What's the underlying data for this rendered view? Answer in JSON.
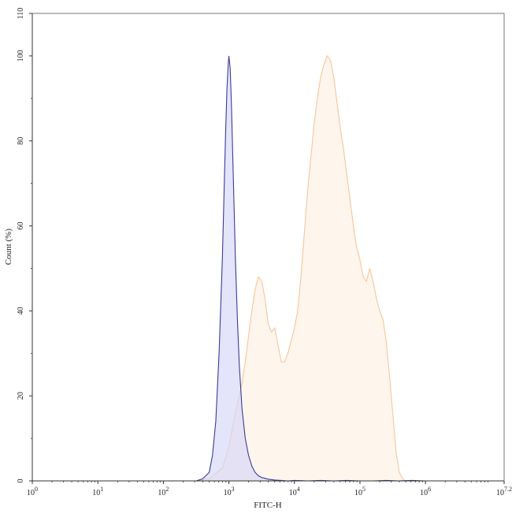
{
  "chart_data": {
    "type": "area",
    "title": "",
    "xlabel": "FITC-H",
    "ylabel": "Count (%)",
    "x_scale": "log10",
    "xlim": [
      1,
      15848932
    ],
    "ylim": [
      0,
      110
    ],
    "grid": false,
    "legend": "none",
    "x_ticks": [
      {
        "value": 1,
        "base": "10",
        "exp": "0"
      },
      {
        "value": 10,
        "base": "10",
        "exp": "1"
      },
      {
        "value": 100,
        "base": "10",
        "exp": "2"
      },
      {
        "value": 1000,
        "base": "10",
        "exp": "3"
      },
      {
        "value": 10000,
        "base": "10",
        "exp": "4"
      },
      {
        "value": 100000,
        "base": "10",
        "exp": "5"
      },
      {
        "value": 1000000,
        "base": "10",
        "exp": "6"
      },
      {
        "value": 15848932,
        "base": "10",
        "exp": "7.2"
      }
    ],
    "y_ticks": [
      {
        "value": 0,
        "label": "0"
      },
      {
        "value": 20,
        "label": "20"
      },
      {
        "value": 40,
        "label": "40"
      },
      {
        "value": 60,
        "label": "60"
      },
      {
        "value": 80,
        "label": "80"
      },
      {
        "value": 100,
        "label": "100"
      },
      {
        "value": 110,
        "label": "110"
      }
    ],
    "series": [
      {
        "color": "#f5c79a",
        "fill": "#fdf0e3",
        "x": [
          316,
          501,
          794,
          1000,
          1259,
          1585,
          1778,
          1995,
          2239,
          2512,
          2818,
          3162,
          3548,
          3981,
          4467,
          5012,
          5623,
          6310,
          7079,
          7943,
          8913,
          10000,
          11220,
          12589,
          14125,
          15849,
          17783,
          19953,
          22387,
          25119,
          28184,
          31623,
          35481,
          39811,
          44668,
          50119,
          56234,
          63096,
          70795,
          79433,
          89125,
          100000,
          112202,
          125893,
          141254,
          158489,
          177828,
          199526,
          223872,
          251189,
          281838,
          316228,
          354813,
          398107,
          446684,
          501187,
          562341,
          630957,
          707946,
          794328,
          891251,
          1000000,
          1258925,
          1584893,
          1995262
        ],
        "values": [
          0,
          0.5,
          3,
          8,
          16,
          23,
          28,
          34,
          40,
          45,
          48,
          47,
          43,
          37,
          35,
          36,
          32,
          28,
          28,
          30,
          33,
          36,
          40,
          48,
          58,
          68,
          76,
          84,
          90,
          95,
          98,
          100,
          99,
          95,
          89,
          83,
          78,
          72,
          66,
          60,
          55,
          52,
          48,
          47,
          50,
          47,
          43,
          40,
          38,
          33,
          25,
          16,
          7,
          2,
          0.5,
          0,
          0,
          0,
          0,
          0,
          0,
          0,
          0,
          0,
          0
        ]
      },
      {
        "color": "#3d3a99",
        "fill": "#d5d5f7",
        "x": [
          316,
          398,
          501,
          562,
          631,
          708,
          794,
          851,
          891,
          933,
          977,
          1000,
          1047,
          1096,
          1148,
          1202,
          1259,
          1349,
          1445,
          1585,
          1778,
          1995,
          2239,
          2512,
          2818,
          3162,
          3981,
          5012,
          6310,
          7943,
          10000,
          15849,
          25119,
          39811,
          63096,
          100000,
          158489,
          251189,
          398107,
          630957,
          1000000,
          1584893
        ],
        "values": [
          0,
          0.5,
          2,
          6,
          14,
          30,
          52,
          70,
          82,
          92,
          98,
          100,
          97,
          88,
          76,
          64,
          52,
          38,
          27,
          17,
          10,
          6,
          3.5,
          2,
          1.2,
          0.8,
          0.4,
          0.2,
          0.1,
          0,
          0.1,
          0,
          0.1,
          0,
          0.1,
          0,
          0,
          0.1,
          0,
          0.1,
          0,
          0
        ]
      }
    ]
  }
}
